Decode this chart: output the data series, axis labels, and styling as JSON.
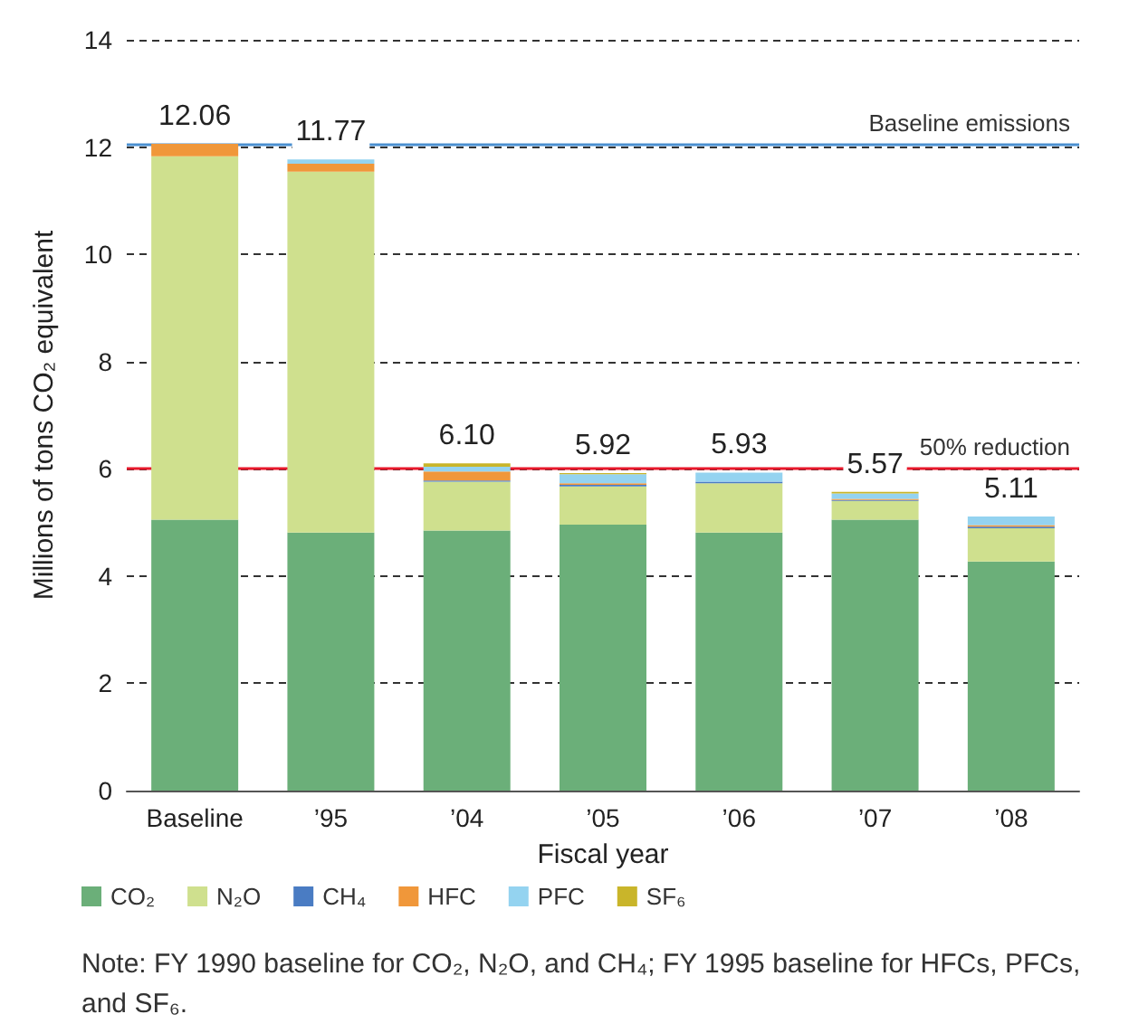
{
  "chart_data": {
    "type": "bar",
    "stacked": true,
    "xlabel": "Fiscal year",
    "ylabel": "Millions of tons CO₂ equivalent",
    "categories": [
      "Baseline",
      "’95",
      "’04",
      "’05",
      "’06",
      "’07",
      "’08"
    ],
    "series": [
      {
        "name": "CO₂",
        "color": "#6baf79",
        "values": [
          5.05,
          4.81,
          4.85,
          4.96,
          4.81,
          5.05,
          4.27
        ]
      },
      {
        "name": "N₂O",
        "color": "#cfe08e",
        "values": [
          6.78,
          6.73,
          0.91,
          0.71,
          0.92,
          0.35,
          0.62
        ]
      },
      {
        "name": "CH₄",
        "color": "#4a7cc3",
        "values": [
          0,
          0,
          0.02,
          0.03,
          0.03,
          0.02,
          0.03
        ]
      },
      {
        "name": "HFC",
        "color": "#f0973a",
        "values": [
          0.23,
          0.15,
          0.17,
          0.03,
          0,
          0.02,
          0.03
        ]
      },
      {
        "name": "PFC",
        "color": "#94d3f0",
        "values": [
          0,
          0.08,
          0.09,
          0.17,
          0.17,
          0.1,
          0.16
        ]
      },
      {
        "name": "SF₆",
        "color": "#c9b52a",
        "values": [
          0,
          0,
          0.06,
          0.02,
          0,
          0.03,
          0
        ]
      }
    ],
    "totals": [
      "12.06",
      "11.77",
      "6.10",
      "5.92",
      "5.93",
      "5.57",
      "5.11"
    ],
    "ylim": [
      0,
      14
    ],
    "yticks": [
      0,
      2,
      4,
      6,
      8,
      10,
      12,
      14
    ],
    "grid": "y",
    "legend": "bottom",
    "ref_lines": [
      {
        "axis": "y",
        "value": 12.06,
        "label": "Baseline emissions",
        "color": "#4a8fd0"
      },
      {
        "axis": "y",
        "value": 6.03,
        "label": "50% reduction",
        "color": "#e8192c"
      }
    ],
    "annotations": [
      "Note: FY 1990 baseline for CO₂, N₂O, and CH₄; FY 1995 baseline for HFCs, PFCs, and SF₆."
    ]
  }
}
